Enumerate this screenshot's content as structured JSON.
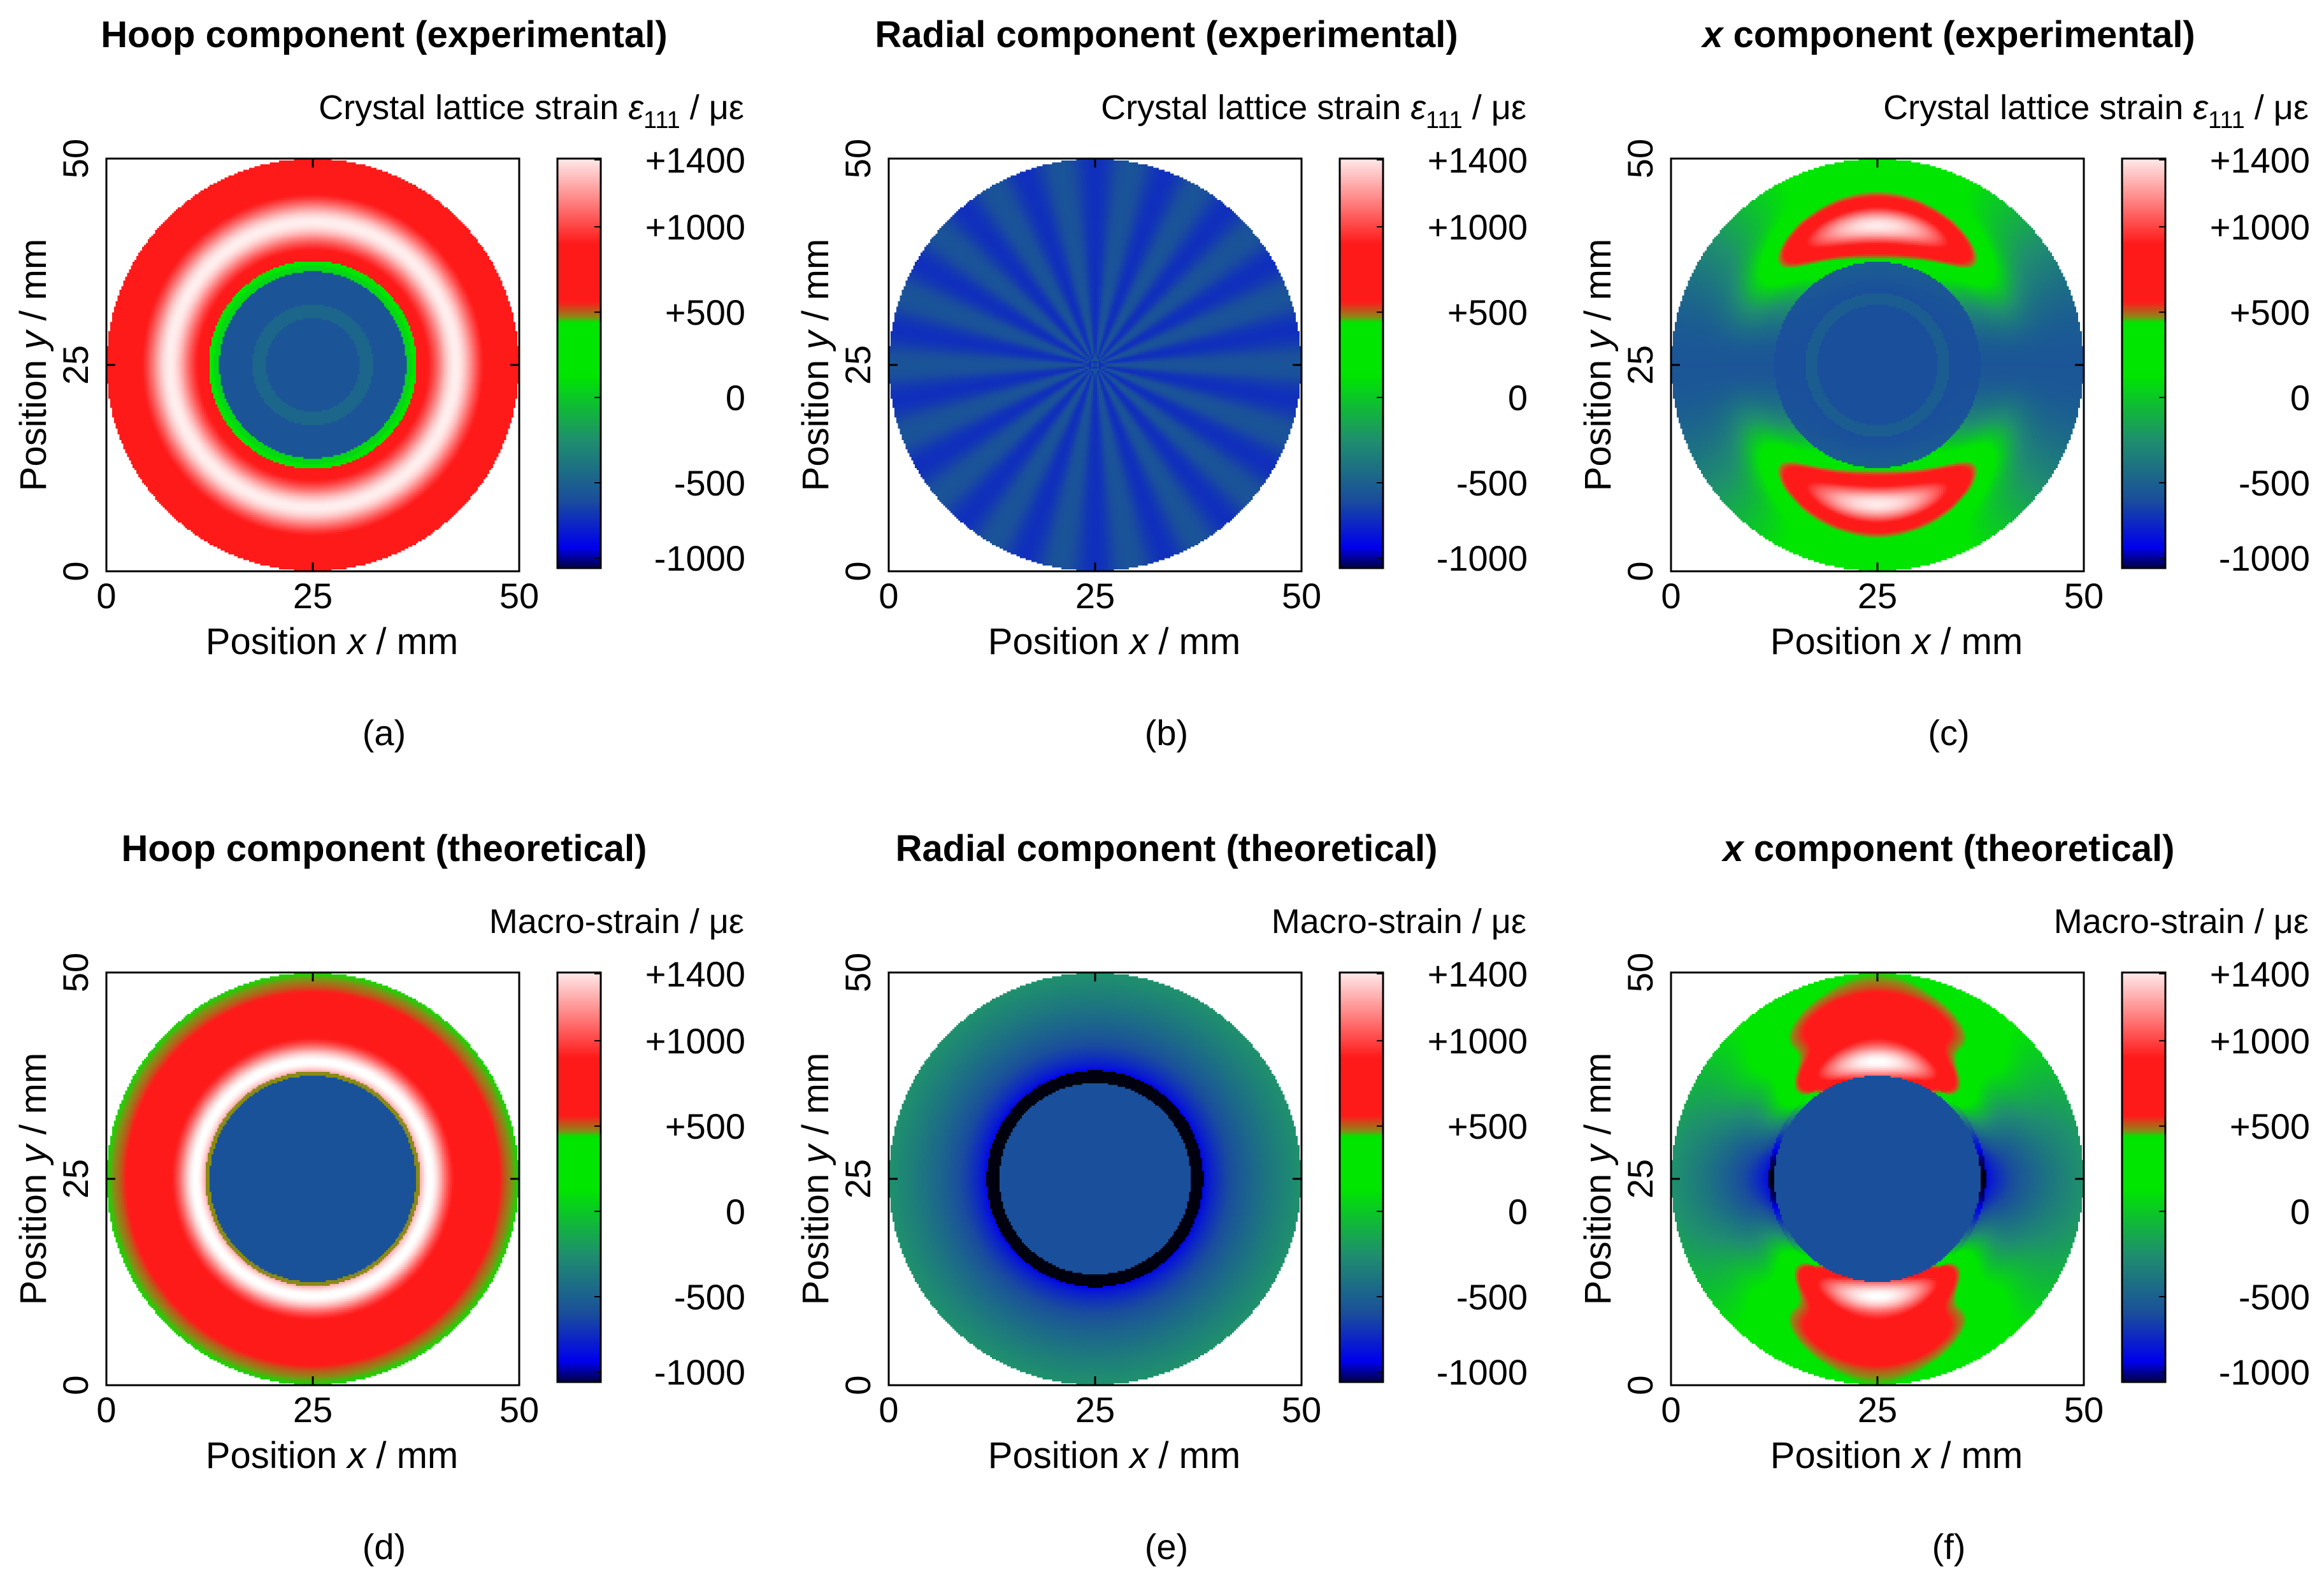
{
  "figure": {
    "colorbar": {
      "ticks": [
        "+1400",
        "+1000",
        "+500",
        "0",
        "-500",
        "-1000"
      ],
      "tick_values": [
        1400,
        1000,
        500,
        0,
        -500,
        -1000
      ],
      "range": [
        -1000,
        1400
      ],
      "colors": {
        "black": "#000000",
        "blue": "#0000ee",
        "steel": "#1a4e9c",
        "teal": "#1f8f6e",
        "green": "#00e600",
        "olive": "#8a8a18",
        "red": "#ff1a1a",
        "white": "#ffffff"
      }
    },
    "axes": {
      "x_ticks": [
        "0",
        "25",
        "50"
      ],
      "y_ticks": [
        "0",
        "25",
        "50"
      ],
      "xlim": [
        0,
        50
      ],
      "ylim": [
        0,
        50
      ]
    }
  },
  "chart_data": [
    {
      "type": "heatmap",
      "field": "hoop_exp",
      "panel": "(a)",
      "title_italic": "",
      "title": "Hoop component (experimental)",
      "cb_label": "Crystal lattice strain",
      "cb_symbol": "ε",
      "cb_sub": "111",
      "cb_unit": " / με",
      "xlabel_pre": "Position ",
      "xlabel_var": "x",
      "xlabel_post": " / mm",
      "ylabel_pre": "Position ",
      "ylabel_var": "y",
      "ylabel_post": " / mm",
      "description_values": {
        "outer_ring_strain": 1000,
        "inner_disk_strain": -550,
        "disk_diameter": 50,
        "hole_diameter": 25
      }
    },
    {
      "type": "heatmap",
      "field": "radial_exp",
      "panel": "(b)",
      "title_italic": "",
      "title": "Radial component (experimental)",
      "cb_label": "Crystal lattice strain",
      "cb_symbol": "ε",
      "cb_sub": "111",
      "cb_unit": " / με",
      "xlabel_pre": "Position ",
      "xlabel_var": "x",
      "xlabel_post": " / mm",
      "ylabel_pre": "Position ",
      "ylabel_var": "y",
      "ylabel_post": " / mm",
      "description_values": {
        "uniform_strain": -600
      }
    },
    {
      "type": "heatmap",
      "field": "x_exp",
      "panel": "(c)",
      "title_italic": "x",
      "title": " component (experimental)",
      "cb_label": "Crystal lattice strain",
      "cb_symbol": "ε",
      "cb_sub": "111",
      "cb_unit": " / με",
      "xlabel_pre": "Position ",
      "xlabel_var": "x",
      "xlabel_post": " / mm",
      "ylabel_pre": "Position ",
      "ylabel_var": "y",
      "ylabel_post": " / mm",
      "description_values": {
        "lobe_peak_strain": 1300,
        "center_strain": -600
      }
    },
    {
      "type": "heatmap",
      "field": "hoop_th",
      "panel": "(d)",
      "title_italic": "",
      "title": "Hoop component (theoretical)",
      "cb_label": "Macro-strain",
      "cb_symbol": "",
      "cb_sub": "",
      "cb_unit": " / με",
      "xlabel_pre": "Position ",
      "xlabel_var": "x",
      "xlabel_post": " / mm",
      "ylabel_pre": "Position ",
      "ylabel_var": "y",
      "ylabel_post": " / mm",
      "description_values": {
        "ring_peak_strain": 1400,
        "edge_strain": 450,
        "inner_disk_strain": -600
      }
    },
    {
      "type": "heatmap",
      "field": "radial_th",
      "panel": "(e)",
      "title_italic": "",
      "title": "Radial component (theoretical)",
      "cb_label": "Macro-strain",
      "cb_symbol": "",
      "cb_sub": "",
      "cb_unit": " / με",
      "xlabel_pre": "Position ",
      "xlabel_var": "x",
      "xlabel_post": " / mm",
      "ylabel_pre": "Position ",
      "ylabel_var": "y",
      "ylabel_post": " / mm",
      "description_values": {
        "interface_strain": -1000,
        "edge_strain": -250,
        "inner_disk_strain": -600
      }
    },
    {
      "type": "heatmap",
      "field": "x_th",
      "panel": "(f)",
      "title_italic": "x",
      "title": " component (theoretical)",
      "cb_label": "Macro-strain",
      "cb_symbol": "",
      "cb_sub": "",
      "cb_unit": " / με",
      "xlabel_pre": "Position ",
      "xlabel_var": "x",
      "xlabel_post": " / mm",
      "ylabel_pre": "Position ",
      "ylabel_var": "y",
      "ylabel_post": " / mm",
      "description_values": {
        "lobe_peak_strain": 1400,
        "side_min_strain": -1000,
        "inner_disk_strain": -600
      }
    }
  ]
}
